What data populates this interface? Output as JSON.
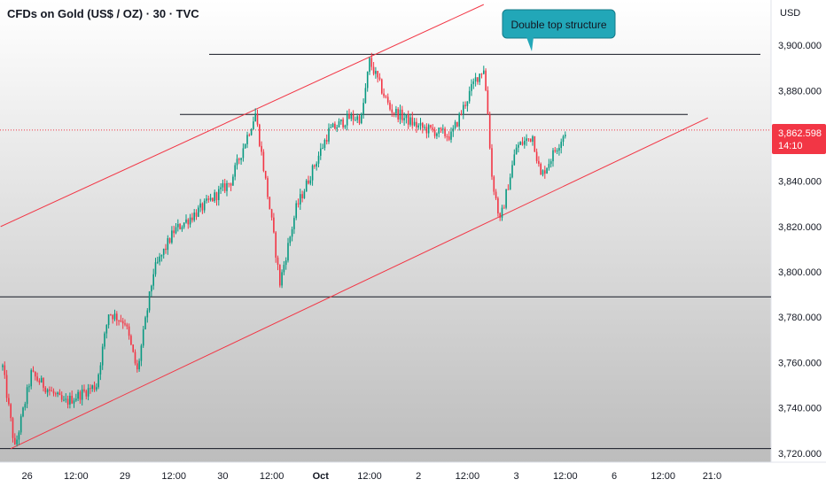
{
  "header": {
    "title": "CFDs on Gold (US$ / OZ) · 30 · TVC",
    "currency": "USD"
  },
  "colors": {
    "up": "#089981",
    "down": "#f23645",
    "channel": "#f23645",
    "level": "#131722",
    "callout_fill": "#22a7b8",
    "price_tag": "#f23645"
  },
  "price_tag": {
    "price": "3,862.598",
    "countdown": "14:10"
  },
  "annotation": {
    "text": "Double top structure"
  },
  "chart_data": {
    "type": "candlestick",
    "title": "CFDs on Gold (US$ / OZ) · 30 · TVC",
    "ylim": [
      3716,
      3920
    ],
    "grid": false,
    "y_ticks": [
      {
        "value": 3900,
        "label": "3,900.000"
      },
      {
        "value": 3880,
        "label": "3,880.000"
      },
      {
        "value": 3840,
        "label": "3,840.000"
      },
      {
        "value": 3820,
        "label": "3,820.000"
      },
      {
        "value": 3800,
        "label": "3,800.000"
      },
      {
        "value": 3780,
        "label": "3,780.000"
      },
      {
        "value": 3760,
        "label": "3,760.000"
      },
      {
        "value": 3740,
        "label": "3,740.000"
      },
      {
        "value": 3720,
        "label": "3,720.000"
      }
    ],
    "x_ticks": [
      {
        "index": 12,
        "label": "26",
        "bold": false
      },
      {
        "index": 36,
        "label": "12:00",
        "bold": false
      },
      {
        "index": 60,
        "label": "29",
        "bold": false
      },
      {
        "index": 84,
        "label": "12:00",
        "bold": false
      },
      {
        "index": 108,
        "label": "30",
        "bold": false
      },
      {
        "index": 132,
        "label": "12:00",
        "bold": false
      },
      {
        "index": 156,
        "label": "Oct",
        "bold": true
      },
      {
        "index": 180,
        "label": "12:00",
        "bold": false
      },
      {
        "index": 204,
        "label": "2",
        "bold": false
      },
      {
        "index": 228,
        "label": "12:00",
        "bold": false
      },
      {
        "index": 252,
        "label": "3",
        "bold": false
      },
      {
        "index": 276,
        "label": "12:00",
        "bold": false
      },
      {
        "index": 300,
        "label": "6",
        "bold": false
      },
      {
        "index": 324,
        "label": "12:00",
        "bold": false
      },
      {
        "index": 348,
        "label": "21:0",
        "bold": false
      }
    ],
    "anchors": [
      [
        0,
        3758
      ],
      [
        6,
        3722
      ],
      [
        14,
        3755
      ],
      [
        30,
        3742
      ],
      [
        46,
        3750
      ],
      [
        52,
        3782
      ],
      [
        60,
        3778
      ],
      [
        66,
        3756
      ],
      [
        74,
        3800
      ],
      [
        84,
        3818
      ],
      [
        100,
        3830
      ],
      [
        112,
        3840
      ],
      [
        124,
        3870
      ],
      [
        132,
        3822
      ],
      [
        136,
        3795
      ],
      [
        144,
        3828
      ],
      [
        160,
        3862
      ],
      [
        170,
        3868
      ],
      [
        176,
        3868
      ],
      [
        180,
        3893
      ],
      [
        190,
        3872
      ],
      [
        204,
        3864
      ],
      [
        220,
        3860
      ],
      [
        232,
        3885
      ],
      [
        236,
        3890
      ],
      [
        238,
        3870
      ],
      [
        240,
        3842
      ],
      [
        244,
        3822
      ],
      [
        252,
        3855
      ],
      [
        260,
        3860
      ],
      [
        264,
        3842
      ],
      [
        270,
        3852
      ],
      [
        276,
        3862
      ]
    ],
    "levels": [
      3896,
      3869.5,
      3789,
      3722
    ],
    "channel_lines": [
      {
        "from": [
          -1,
          3820
        ],
        "to": [
          236,
          3918
        ]
      },
      {
        "from": [
          4,
          3722
        ],
        "to": [
          346,
          3868
        ]
      }
    ],
    "last_price": 3862.598
  }
}
